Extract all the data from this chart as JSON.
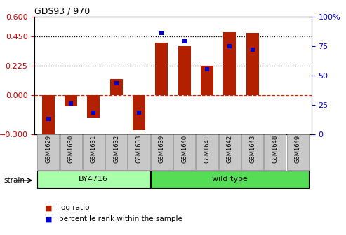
{
  "title": "GDS93 / 970",
  "samples": [
    "GSM1629",
    "GSM1630",
    "GSM1631",
    "GSM1632",
    "GSM1633",
    "GSM1639",
    "GSM1640",
    "GSM1641",
    "GSM1642",
    "GSM1643",
    "GSM1648",
    "GSM1649"
  ],
  "log_ratio": [
    -0.3,
    -0.09,
    -0.175,
    0.12,
    -0.27,
    0.4,
    0.375,
    0.225,
    0.48,
    0.475,
    0.0,
    0.0
  ],
  "percentile": [
    13,
    26,
    18,
    43,
    18,
    86,
    79,
    55,
    75,
    72,
    null,
    null
  ],
  "ylim_left": [
    -0.3,
    0.6
  ],
  "ylim_right": [
    0,
    100
  ],
  "yticks_left": [
    -0.3,
    0,
    0.225,
    0.45,
    0.6
  ],
  "yticks_right": [
    0,
    25,
    50,
    75,
    100
  ],
  "hlines": [
    0.225,
    0.45
  ],
  "bar_color": "#B22000",
  "marker_color": "#0000CC",
  "zero_line_color": "#CC2200",
  "strain_groups": [
    {
      "label": "BY4716",
      "start": 0,
      "end": 5,
      "color": "#AAFFAA"
    },
    {
      "label": "wild type",
      "start": 6,
      "end": 12,
      "color": "#55DD55"
    }
  ],
  "legend_bar_label": "log ratio",
  "legend_marker_label": "percentile rank within the sample",
  "strain_label": "strain",
  "bg_color": "#FFFFFF",
  "tick_color_left": "#CC0000",
  "tick_color_right": "#0000CC",
  "cell_bg": "#C8C8C8",
  "cell_border": "#888888"
}
